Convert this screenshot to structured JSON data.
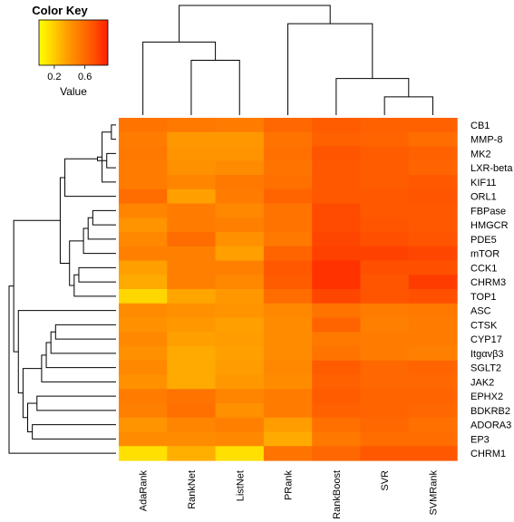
{
  "chart_data": {
    "type": "heatmap",
    "columns": [
      "AdaRank",
      "RankNet",
      "ListNet",
      "PRank",
      "RankBoost",
      "SVR",
      "SVMRank"
    ],
    "rows": [
      "CB1",
      "MMP-8",
      "MK2",
      "LXR-beta",
      "KIF11",
      "ORL1",
      "FBPase",
      "HMGCR",
      "PDE5",
      "mTOR",
      "CCK1",
      "CHRM3",
      "TOP1",
      "ASC",
      "CTSK",
      "CYP17",
      "Itgαvβ3",
      "SGLT2",
      "JAK2",
      "EPHX2",
      "BDKRB2",
      "ADORA3",
      "EP3",
      "CHRM1"
    ],
    "values": [
      [
        0.62,
        0.6,
        0.58,
        0.68,
        0.74,
        0.72,
        0.72
      ],
      [
        0.58,
        0.44,
        0.44,
        0.62,
        0.72,
        0.7,
        0.66
      ],
      [
        0.6,
        0.46,
        0.46,
        0.64,
        0.78,
        0.74,
        0.72
      ],
      [
        0.58,
        0.48,
        0.5,
        0.62,
        0.76,
        0.74,
        0.7
      ],
      [
        0.58,
        0.54,
        0.6,
        0.64,
        0.76,
        0.74,
        0.76
      ],
      [
        0.66,
        0.4,
        0.58,
        0.7,
        0.76,
        0.76,
        0.78
      ],
      [
        0.54,
        0.58,
        0.52,
        0.62,
        0.82,
        0.76,
        0.76
      ],
      [
        0.46,
        0.58,
        0.56,
        0.62,
        0.82,
        0.78,
        0.76
      ],
      [
        0.52,
        0.66,
        0.48,
        0.6,
        0.84,
        0.8,
        0.78
      ],
      [
        0.56,
        0.56,
        0.4,
        0.7,
        0.86,
        0.86,
        0.84
      ],
      [
        0.4,
        0.56,
        0.56,
        0.76,
        0.92,
        0.8,
        0.8
      ],
      [
        0.36,
        0.56,
        0.52,
        0.74,
        0.92,
        0.78,
        0.88
      ],
      [
        0.18,
        0.38,
        0.44,
        0.66,
        0.84,
        0.78,
        0.8
      ],
      [
        0.5,
        0.48,
        0.46,
        0.52,
        0.62,
        0.58,
        0.6
      ],
      [
        0.48,
        0.44,
        0.4,
        0.5,
        0.7,
        0.56,
        0.58
      ],
      [
        0.52,
        0.4,
        0.42,
        0.5,
        0.6,
        0.58,
        0.58
      ],
      [
        0.48,
        0.36,
        0.4,
        0.5,
        0.62,
        0.58,
        0.56
      ],
      [
        0.52,
        0.36,
        0.42,
        0.52,
        0.74,
        0.68,
        0.7
      ],
      [
        0.48,
        0.36,
        0.44,
        0.5,
        0.72,
        0.68,
        0.68
      ],
      [
        0.58,
        0.62,
        0.54,
        0.58,
        0.74,
        0.7,
        0.7
      ],
      [
        0.56,
        0.64,
        0.48,
        0.58,
        0.72,
        0.7,
        0.68
      ],
      [
        0.46,
        0.54,
        0.56,
        0.42,
        0.64,
        0.68,
        0.64
      ],
      [
        0.5,
        0.5,
        0.52,
        0.36,
        0.6,
        0.66,
        0.66
      ],
      [
        0.14,
        0.34,
        0.14,
        0.62,
        0.68,
        0.76,
        0.76
      ]
    ],
    "colorscale": [
      "#ffff00",
      "#ffd200",
      "#ffa000",
      "#ff7800",
      "#ff5000",
      "#ff1e00"
    ],
    "value_range": [
      0.0,
      1.0
    ],
    "legend": {
      "title": "Color Key",
      "ticks": [
        "0.2",
        "0.6"
      ],
      "tick_values": [
        0.2,
        0.6
      ],
      "xlabel": "Value",
      "range": [
        0.0,
        0.9
      ],
      "placement": "top-left"
    },
    "column_dendrogram": [
      [
        5,
        6
      ],
      [
        4,
        7
      ],
      [
        1,
        2
      ],
      [
        0,
        9
      ],
      [
        3,
        8
      ],
      [
        10,
        11
      ]
    ],
    "row_dendrogram": [
      [
        0,
        1
      ],
      [
        2,
        3
      ],
      [
        24,
        4
      ],
      [
        25,
        26
      ],
      [
        6,
        7
      ],
      [
        28,
        8
      ],
      [
        29,
        9
      ],
      [
        10,
        11
      ],
      [
        31,
        12
      ],
      [
        30,
        32
      ],
      [
        27,
        5
      ],
      [
        34,
        33
      ],
      [
        14,
        15
      ],
      [
        36,
        16
      ],
      [
        37,
        17
      ],
      [
        38,
        18
      ],
      [
        19,
        20
      ],
      [
        21,
        22
      ],
      [
        40,
        41
      ],
      [
        39,
        42
      ],
      [
        13,
        43
      ],
      [
        35,
        44
      ],
      [
        45,
        23
      ]
    ]
  }
}
